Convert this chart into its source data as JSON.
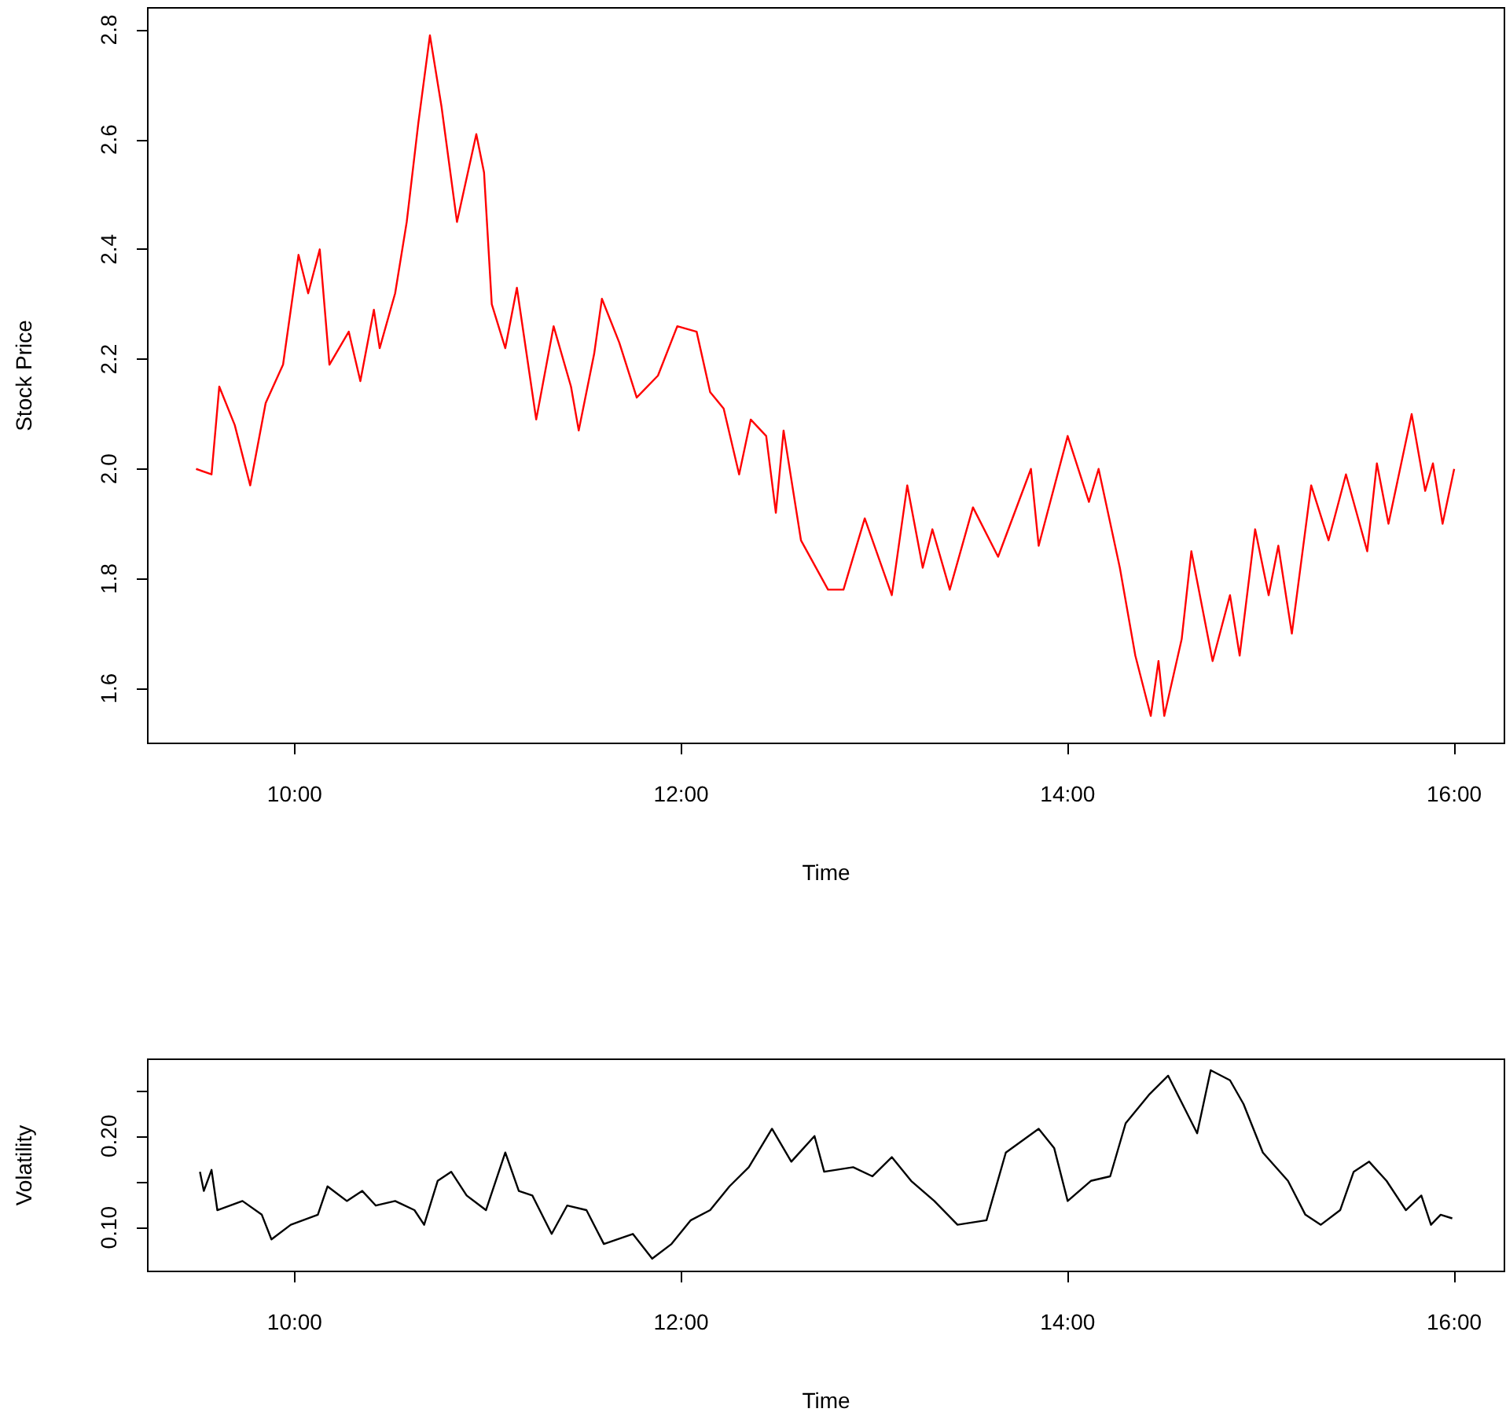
{
  "chart_data": [
    {
      "type": "line",
      "xlabel": "Time",
      "ylabel": "Stock Price",
      "line_style": "solid",
      "xlim": [
        9.24,
        16.26
      ],
      "xticks": [
        {
          "value": 10,
          "label": "10:00"
        },
        {
          "value": 12,
          "label": "12:00"
        },
        {
          "value": 14,
          "label": "14:00"
        },
        {
          "value": 16,
          "label": "16:00"
        }
      ],
      "ylim": [
        1.5,
        2.84
      ],
      "yticks": [
        {
          "value": 1.6,
          "label": "1.6"
        },
        {
          "value": 1.8,
          "label": "1.8"
        },
        {
          "value": 2,
          "label": "2.0"
        },
        {
          "value": 2.2,
          "label": "2.2"
        },
        {
          "value": 2.4,
          "label": "2.4"
        },
        {
          "value": 2.6,
          "label": "2.6"
        },
        {
          "value": 2.8,
          "label": "2.8"
        }
      ],
      "series": [
        {
          "color": "#ff0000",
          "x": [
            9.49,
            9.57,
            9.61,
            9.69,
            9.77,
            9.85,
            9.94,
            10.02,
            10.07,
            10.13,
            10.18,
            10.28,
            10.34,
            10.41,
            10.44,
            10.52,
            10.58,
            10.64,
            10.7,
            10.76,
            10.84,
            10.94,
            10.98,
            11.02,
            11.09,
            11.15,
            11.25,
            11.34,
            11.43,
            11.47,
            11.55,
            11.59,
            11.68,
            11.77,
            11.88,
            11.98,
            12.08,
            12.15,
            12.22,
            12.3,
            12.36,
            12.44,
            12.49,
            12.53,
            12.62,
            12.76,
            12.84,
            12.95,
            13.09,
            13.17,
            13.25,
            13.3,
            13.39,
            13.51,
            13.64,
            13.81,
            13.85,
            14.0,
            14.11,
            14.16,
            14.27,
            14.35,
            14.43,
            14.47,
            14.5,
            14.59,
            14.64,
            14.75,
            14.84,
            14.89,
            14.97,
            15.04,
            15.09,
            15.16,
            15.26,
            15.35,
            15.44,
            15.55,
            15.6,
            15.66,
            15.78,
            15.85,
            15.89,
            15.94,
            16.0
          ],
          "values": [
            2.0,
            1.99,
            2.15,
            2.08,
            1.97,
            2.12,
            2.19,
            2.39,
            2.32,
            2.4,
            2.19,
            2.25,
            2.16,
            2.29,
            2.22,
            2.32,
            2.45,
            2.63,
            2.79,
            2.66,
            2.45,
            2.61,
            2.54,
            2.3,
            2.22,
            2.33,
            2.09,
            2.26,
            2.15,
            2.07,
            2.21,
            2.31,
            2.23,
            2.13,
            2.17,
            2.26,
            2.25,
            2.14,
            2.11,
            1.99,
            2.09,
            2.06,
            1.92,
            2.07,
            1.87,
            1.78,
            1.78,
            1.91,
            1.77,
            1.97,
            1.82,
            1.89,
            1.78,
            1.93,
            1.84,
            2.0,
            1.86,
            2.06,
            1.94,
            2.0,
            1.82,
            1.66,
            1.55,
            1.65,
            1.55,
            1.69,
            1.85,
            1.65,
            1.77,
            1.66,
            1.89,
            1.77,
            1.86,
            1.7,
            1.97,
            1.87,
            1.99,
            1.85,
            2.01,
            1.9,
            2.1,
            1.96,
            2.01,
            1.9,
            2.0
          ]
        }
      ]
    },
    {
      "type": "line",
      "xlabel": "Time",
      "ylabel": "Volatility",
      "line_style": "solid",
      "xlim": [
        9.24,
        16.26
      ],
      "xticks": [
        {
          "value": 10,
          "label": "10:00"
        },
        {
          "value": 12,
          "label": "12:00"
        },
        {
          "value": 14,
          "label": "14:00"
        },
        {
          "value": 16,
          "label": "16:00"
        }
      ],
      "ylim": [
        0.052,
        0.284
      ],
      "yticks": [
        {
          "value": 0.1,
          "label": "0.10"
        },
        {
          "value": 0.15,
          "label": null
        },
        {
          "value": 0.2,
          "label": "0.20"
        },
        {
          "value": 0.25,
          "label": null
        }
      ],
      "series": [
        {
          "color": "#000000",
          "x": [
            9.51,
            9.53,
            9.57,
            9.6,
            9.73,
            9.83,
            9.88,
            9.98,
            10.12,
            10.17,
            10.27,
            10.35,
            10.42,
            10.52,
            10.62,
            10.67,
            10.74,
            10.81,
            10.89,
            10.99,
            11.09,
            11.16,
            11.23,
            11.33,
            11.41,
            11.51,
            11.6,
            11.75,
            11.85,
            11.95,
            12.05,
            12.15,
            12.25,
            12.35,
            12.47,
            12.57,
            12.69,
            12.74,
            12.89,
            12.99,
            13.09,
            13.19,
            13.31,
            13.43,
            13.58,
            13.68,
            13.85,
            13.93,
            14.0,
            14.12,
            14.22,
            14.3,
            14.42,
            14.52,
            14.67,
            14.74,
            14.84,
            14.91,
            15.01,
            15.14,
            15.23,
            15.31,
            15.41,
            15.48,
            15.56,
            15.65,
            15.75,
            15.83,
            15.88,
            15.93,
            15.99
          ],
          "values": [
            0.161,
            0.14,
            0.163,
            0.119,
            0.129,
            0.114,
            0.087,
            0.103,
            0.114,
            0.145,
            0.129,
            0.14,
            0.124,
            0.129,
            0.119,
            0.103,
            0.151,
            0.161,
            0.135,
            0.119,
            0.182,
            0.14,
            0.135,
            0.093,
            0.124,
            0.119,
            0.082,
            0.093,
            0.066,
            0.082,
            0.108,
            0.119,
            0.145,
            0.166,
            0.208,
            0.172,
            0.2,
            0.161,
            0.166,
            0.156,
            0.177,
            0.151,
            0.129,
            0.103,
            0.108,
            0.182,
            0.208,
            0.187,
            0.129,
            0.151,
            0.156,
            0.214,
            0.245,
            0.266,
            0.203,
            0.272,
            0.261,
            0.235,
            0.182,
            0.151,
            0.114,
            0.103,
            0.119,
            0.161,
            0.172,
            0.151,
            0.119,
            0.135,
            0.103,
            0.114,
            0.11
          ]
        }
      ]
    }
  ]
}
